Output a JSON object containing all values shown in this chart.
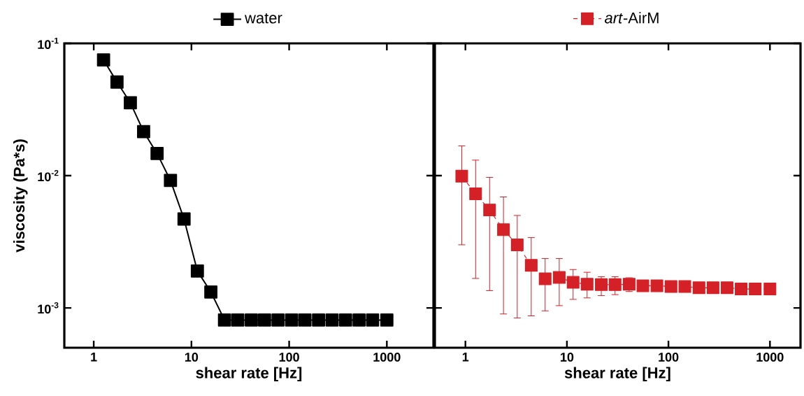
{
  "chart_data": [
    {
      "type": "line",
      "xlabel": "shear rate [Hz]",
      "ylabel": "viscosity (Pa*s)",
      "log": "xy",
      "legend": "top",
      "marker": "square",
      "line_style": "solid",
      "xlim": [
        0.5,
        3000
      ],
      "ylim": [
        0.0005,
        0.1
      ],
      "xticks": [
        1,
        10,
        100,
        1000
      ],
      "yticks": [
        {
          "value": 0.1,
          "label": "10$^{-1}$"
        },
        {
          "value": 0.01,
          "label": "10$^{-2}$"
        },
        {
          "value": 0.001,
          "label": "10$^{-3}$"
        }
      ],
      "series": [
        {
          "name": "water",
          "color": "#000000",
          "x": [
            1.26,
            1.73,
            2.37,
            3.24,
            4.45,
            6.1,
            8.4,
            11.5,
            15.8,
            21.8,
            29.8,
            41,
            56,
            77,
            106,
            145,
            200,
            275,
            378,
            520,
            715,
            1000
          ],
          "values": [
            0.075,
            0.051,
            0.0356,
            0.0215,
            0.0147,
            0.0092,
            0.0047,
            0.0019,
            0.00132,
            0.00081,
            0.00081,
            0.00081,
            0.00081,
            0.00081,
            0.00081,
            0.00081,
            0.00081,
            0.00081,
            0.00081,
            0.00081,
            0.00081,
            0.00081
          ]
        }
      ]
    },
    {
      "type": "line",
      "xlabel": "shear rate [Hz]",
      "log": "xy",
      "legend": "top",
      "marker": "square",
      "line_style": "dashed",
      "tick_labels": "x",
      "xlim": [
        0.5,
        2000
      ],
      "ylim": [
        0.0005,
        0.1
      ],
      "xticks": [
        1,
        10,
        100,
        1000
      ],
      "yticks": [
        {
          "value": 0.1,
          "label": null
        },
        {
          "value": 0.01,
          "label": null
        },
        {
          "value": 0.001,
          "label": null
        }
      ],
      "series": [
        {
          "name": "*art*-AirM",
          "color": "#d42027",
          "x": [
            0.92,
            1.26,
            1.73,
            2.37,
            3.24,
            4.45,
            6.1,
            8.4,
            11.5,
            15.8,
            21.8,
            29.8,
            41,
            56,
            77,
            106,
            145,
            200,
            275,
            378,
            520,
            715,
            1000
          ],
          "values": [
            0.0099,
            0.0073,
            0.0055,
            0.0039,
            0.003,
            0.0021,
            0.00166,
            0.0017,
            0.00156,
            0.00151,
            0.0015,
            0.0015,
            0.00151,
            0.00147,
            0.00147,
            0.00145,
            0.00145,
            0.00142,
            0.00142,
            0.00142,
            0.00139,
            0.00139,
            0.00139
          ],
          "errors": [
            [
              0.003,
              0.0168
            ],
            [
              0.00167,
              0.0131
            ],
            [
              0.00135,
              0.0097
            ],
            [
              0.0009,
              0.0069
            ],
            [
              0.00084,
              0.005
            ],
            [
              0.00087,
              0.0034
            ],
            [
              0.00095,
              0.00236
            ],
            [
              0.00104,
              0.00236
            ],
            [
              0.00116,
              0.00195
            ],
            [
              0.00119,
              0.00186
            ],
            [
              0.00124,
              0.00172
            ],
            [
              0.00126,
              0.00172
            ],
            [
              0.00133,
              0.00169
            ],
            null,
            null,
            null,
            null,
            null,
            null,
            null,
            null,
            null,
            null
          ]
        }
      ]
    }
  ]
}
